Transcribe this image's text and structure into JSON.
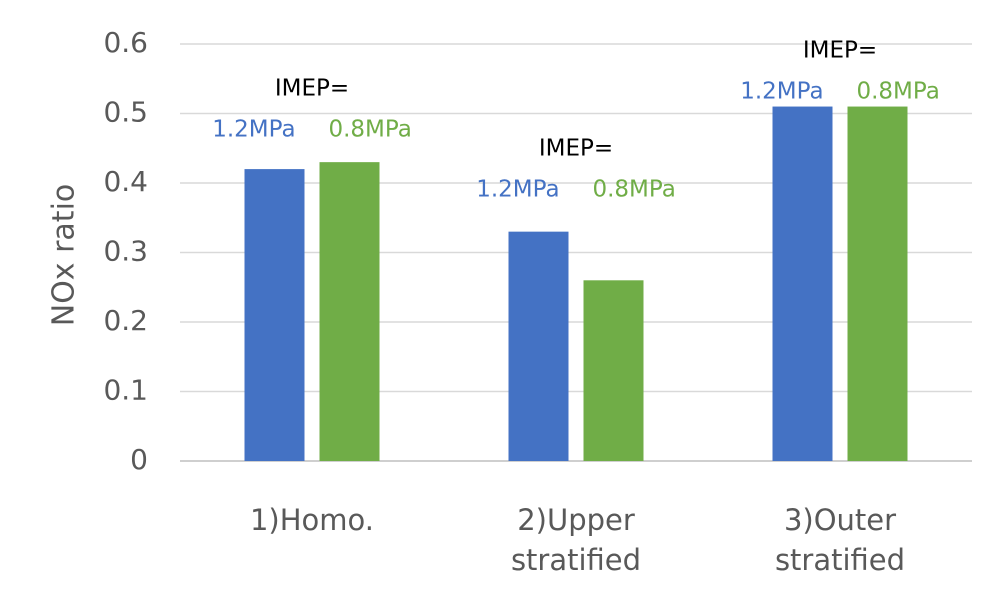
{
  "chart_data": {
    "type": "bar",
    "y_label": "NOx ratio",
    "categories": [
      "1)Homo.",
      "2)Upper stratified",
      "3)Outer stratified"
    ],
    "series": [
      {
        "name": "1.2MPa",
        "color": "#4472c4",
        "values": [
          0.42,
          0.33,
          0.51
        ]
      },
      {
        "name": "0.8MPa",
        "color": "#70ad47",
        "values": [
          0.43,
          0.26,
          0.51
        ]
      }
    ],
    "annotations": [
      "IMEP=",
      "IMEP=",
      "IMEP="
    ],
    "ylim": [
      0,
      0.6
    ],
    "yticks": [
      0,
      0.1,
      0.2,
      0.3,
      0.4,
      0.5,
      0.6
    ],
    "grid": true
  }
}
